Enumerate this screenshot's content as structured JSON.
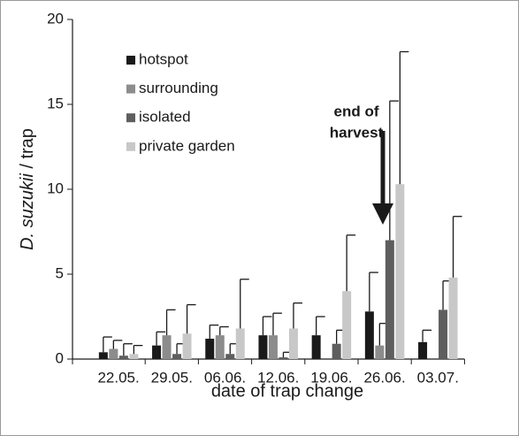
{
  "chart_data": {
    "type": "bar",
    "categories": [
      "22.05.",
      "29.05.",
      "06.06.",
      "12.06.",
      "19.06.",
      "26.06.",
      "03.07."
    ],
    "series": [
      {
        "name": "hotspot",
        "color": "#1a1a1a",
        "values": [
          0.4,
          0.8,
          1.2,
          1.4,
          1.4,
          2.8,
          1.0
        ],
        "errors": [
          0.9,
          0.8,
          0.8,
          1.1,
          1.1,
          2.3,
          0.7
        ]
      },
      {
        "name": "surrounding",
        "color": "#8c8c8c",
        "values": [
          0.6,
          1.4,
          1.4,
          1.4,
          0,
          0.8,
          0
        ],
        "errors": [
          0.5,
          1.5,
          0.5,
          1.3,
          null,
          1.3,
          null
        ]
      },
      {
        "name": "isolated",
        "color": "#5e5e5e",
        "values": [
          0.2,
          0.3,
          0.3,
          0.1,
          0.9,
          7.0,
          2.9
        ],
        "errors": [
          0.7,
          0.6,
          0.6,
          0.3,
          0.8,
          8.2,
          1.7
        ]
      },
      {
        "name": "private garden",
        "color": "#c8c8c8",
        "values": [
          0.3,
          1.5,
          1.8,
          1.8,
          4.0,
          10.3,
          4.8
        ],
        "errors": [
          0.5,
          1.7,
          2.9,
          1.5,
          3.3,
          7.8,
          3.6
        ]
      }
    ],
    "ylim": [
      0,
      20
    ],
    "yticks": [
      0,
      5,
      10,
      15,
      20
    ],
    "ylabel_italic": "D. suzukii",
    "ylabel_rest": "/ trap",
    "xlabel": "date of trap change",
    "annotation": [
      "end of",
      "harvest"
    ],
    "legend": "top-left"
  }
}
